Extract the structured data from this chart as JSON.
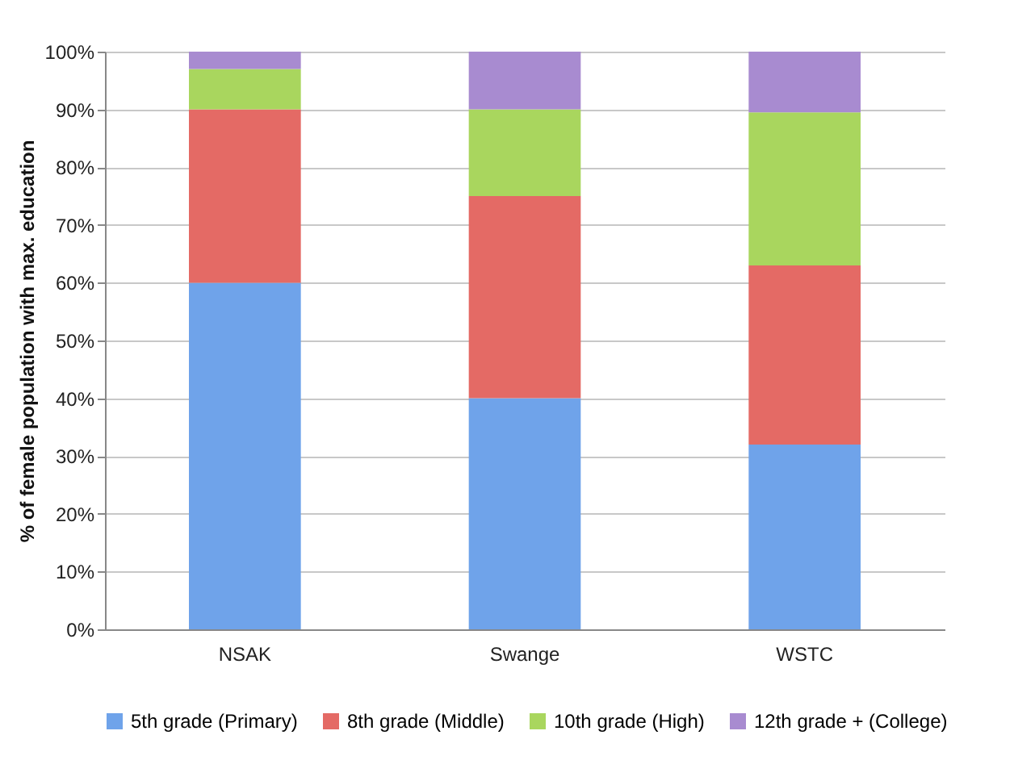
{
  "chart_data": {
    "type": "bar",
    "stacked": true,
    "ylabel": "% of female population with max. education",
    "categories": [
      "NSAK",
      "Swange",
      "WSTC"
    ],
    "series": [
      {
        "name": "5th grade (Primary)",
        "color": "#6fa3ea",
        "values": [
          60,
          40,
          32
        ]
      },
      {
        "name": "8th grade (Middle)",
        "color": "#e46a65",
        "values": [
          30,
          35,
          31
        ]
      },
      {
        "name": "10th grade (High)",
        "color": "#a9d65e",
        "values": [
          7,
          15,
          26.5
        ]
      },
      {
        "name": "12th grade + (College)",
        "color": "#a88bd0",
        "values": [
          3,
          10,
          10.5
        ]
      }
    ],
    "ylim": [
      0,
      100
    ],
    "yticks": [
      {
        "value": 0,
        "label": "0%"
      },
      {
        "value": 10,
        "label": "10%"
      },
      {
        "value": 20,
        "label": "20%"
      },
      {
        "value": 30,
        "label": "30%"
      },
      {
        "value": 40,
        "label": "40%"
      },
      {
        "value": 50,
        "label": "50%"
      },
      {
        "value": 60,
        "label": "60%"
      },
      {
        "value": 70,
        "label": "70%"
      },
      {
        "value": 80,
        "label": "80%"
      },
      {
        "value": 90,
        "label": "90%"
      },
      {
        "value": 100,
        "label": "100%"
      }
    ],
    "grid": "y",
    "legend": "bottom"
  }
}
